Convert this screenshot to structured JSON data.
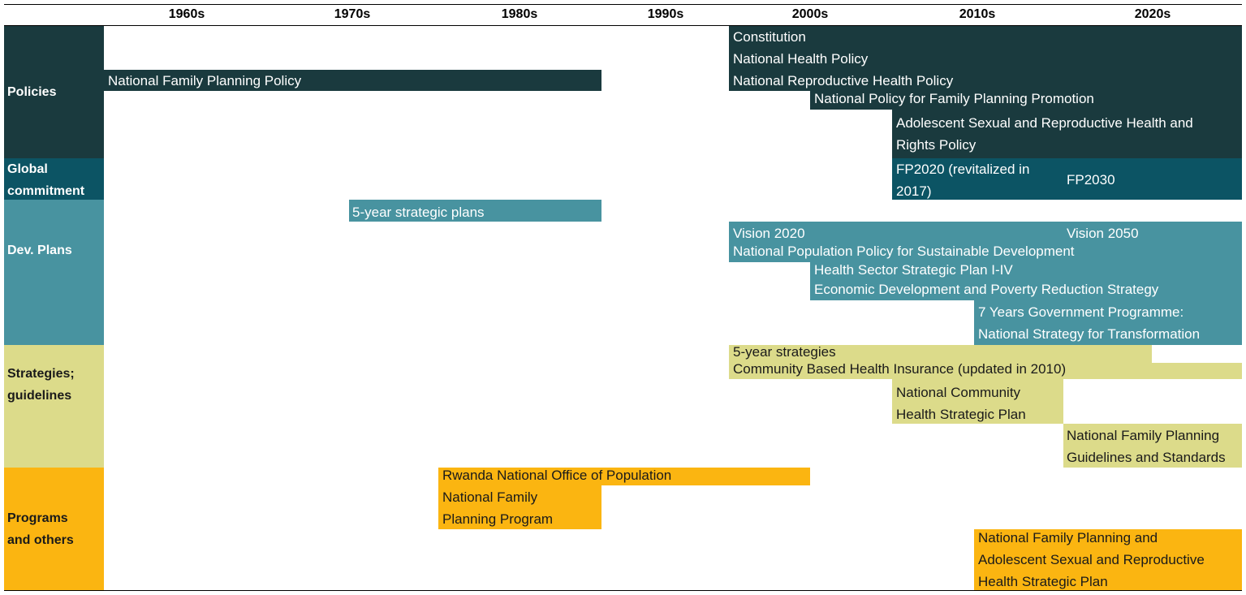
{
  "decades": [
    "1960s",
    "1970s",
    "1980s",
    "1990s",
    "2000s",
    "2010s",
    "2020s"
  ],
  "colors": {
    "policies": "#1a3a3e",
    "global": "#0c5464",
    "dev": "#4893a0",
    "strategies": "#dcdb8a",
    "programs": "#fbb511",
    "light_text": "#ffffff",
    "dark_text": "#1a1a1a"
  },
  "categories": [
    {
      "key": "policies",
      "lines": [
        "Policies"
      ]
    },
    {
      "key": "global",
      "lines": [
        "Global",
        "commitment"
      ]
    },
    {
      "key": "dev",
      "lines": [
        "Dev. Plans"
      ]
    },
    {
      "key": "strategies",
      "lines": [
        "Strategies;",
        "guidelines"
      ]
    },
    {
      "key": "programs",
      "lines": [
        "Programs",
        "and others"
      ]
    }
  ],
  "items": [
    {
      "cat": "policies",
      "lines": [
        "National Family Planning Policy"
      ]
    },
    {
      "cat": "policies",
      "lines": [
        "Constitution"
      ]
    },
    {
      "cat": "policies",
      "lines": [
        "National Health Policy"
      ]
    },
    {
      "cat": "policies",
      "lines": [
        "National Reproductive Health Policy"
      ]
    },
    {
      "cat": "policies",
      "lines": [
        "National Policy for Family Planning Promotion"
      ]
    },
    {
      "cat": "policies",
      "lines": [
        "Adolescent Sexual and Reproductive Health and",
        "Rights Policy"
      ]
    },
    {
      "cat": "global",
      "lines": [
        "FP2020 (revitalized in",
        "2017)"
      ]
    },
    {
      "cat": "global",
      "lines": [
        "FP2030"
      ]
    },
    {
      "cat": "dev",
      "lines": [
        "5-year strategic plans"
      ]
    },
    {
      "cat": "dev",
      "lines": [
        "Vision 2020"
      ]
    },
    {
      "cat": "dev",
      "lines": [
        "Vision 2050"
      ]
    },
    {
      "cat": "dev",
      "lines": [
        "National Population Policy for Sustainable Development"
      ]
    },
    {
      "cat": "dev",
      "lines": [
        "Health Sector Strategic Plan I-IV"
      ]
    },
    {
      "cat": "dev",
      "lines": [
        "Economic Development and Poverty Reduction Strategy"
      ]
    },
    {
      "cat": "dev",
      "lines": [
        "7 Years Government Programme:",
        "National Strategy for Transformation"
      ]
    },
    {
      "cat": "strategies",
      "lines": [
        "5-year strategies"
      ]
    },
    {
      "cat": "strategies",
      "lines": [
        "Community Based Health Insurance (updated in 2010)"
      ]
    },
    {
      "cat": "strategies",
      "lines": [
        "National Community",
        "Health Strategic Plan"
      ]
    },
    {
      "cat": "strategies",
      "lines": [
        "National Family Planning",
        "Guidelines and Standards"
      ]
    },
    {
      "cat": "programs",
      "lines": [
        "Rwanda National Office of Population"
      ]
    },
    {
      "cat": "programs",
      "lines": [
        "National Family",
        "Planning Program"
      ]
    },
    {
      "cat": "programs",
      "lines": [
        "National Family Planning and",
        "Adolescent Sexual and Reproductive",
        "Health Strategic Plan"
      ]
    }
  ]
}
